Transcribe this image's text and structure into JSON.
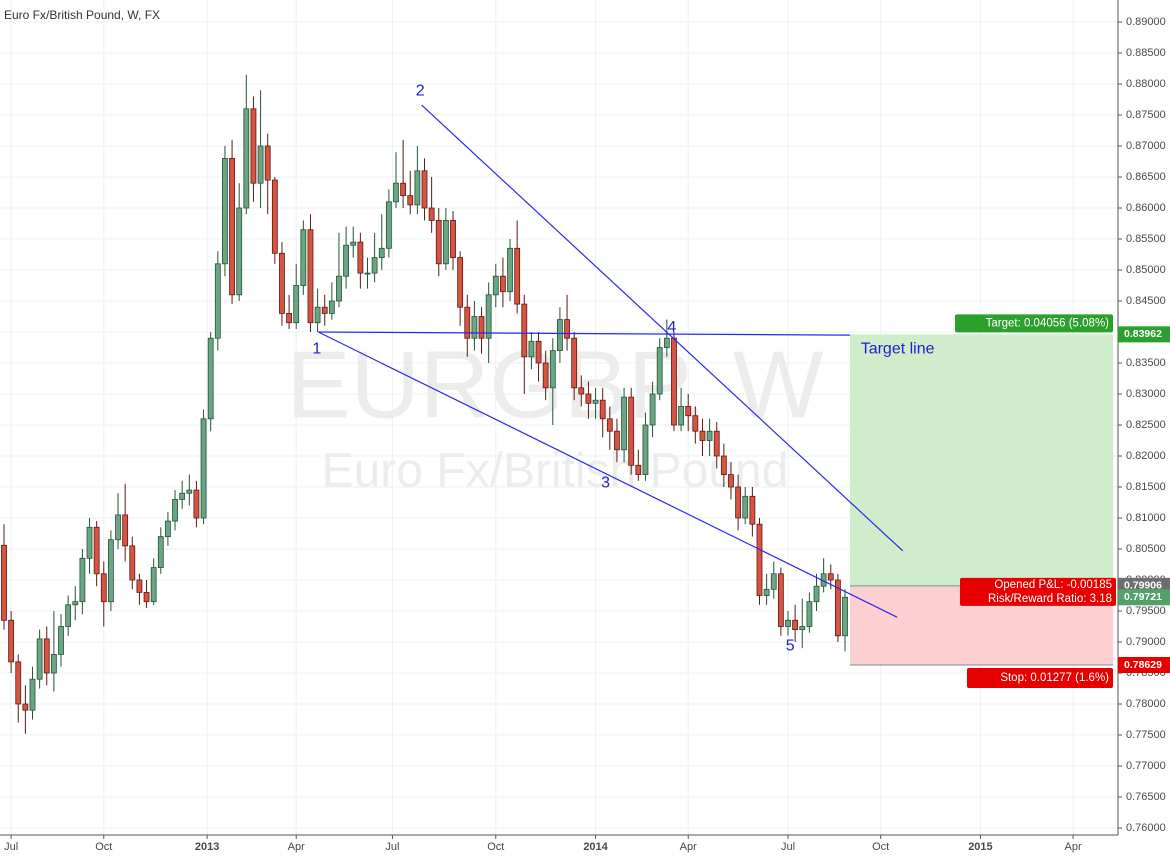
{
  "chart_data": {
    "type": "candlestick",
    "title": "Euro Fx/British Pound, W, FX",
    "watermark": "EURGBP, W",
    "watermark_subtitle": "Euro Fx/British Pound",
    "up_color": "#6ba583",
    "down_color": "#d75442",
    "grid": true,
    "xlim": [
      -0.56,
      156.3
    ],
    "xticks": [
      {
        "value": 1,
        "label": "Jul"
      },
      {
        "value": 14,
        "label": "Oct"
      },
      {
        "value": 28.5,
        "label": "2013"
      },
      {
        "value": 41,
        "label": "Apr"
      },
      {
        "value": 54.5,
        "label": "Jul"
      },
      {
        "value": 69,
        "label": "Oct"
      },
      {
        "value": 83,
        "label": "2014"
      },
      {
        "value": 96,
        "label": "Apr"
      },
      {
        "value": 110,
        "label": "Jul"
      },
      {
        "value": 123,
        "label": "Oct"
      },
      {
        "value": 137,
        "label": "2015"
      },
      {
        "value": 150,
        "label": "Apr"
      }
    ],
    "ylim": [
      0.75887,
      0.89355
    ],
    "yticks": [
      {
        "value": 0.76,
        "label": "0.76000"
      },
      {
        "value": 0.765,
        "label": "0.76500"
      },
      {
        "value": 0.77,
        "label": "0.77000"
      },
      {
        "value": 0.775,
        "label": "0.77500"
      },
      {
        "value": 0.78,
        "label": "0.78000"
      },
      {
        "value": 0.785,
        "label": "0.78500"
      },
      {
        "value": 0.79,
        "label": "0.79000"
      },
      {
        "value": 0.795,
        "label": "0.79500"
      },
      {
        "value": 0.8,
        "label": "0.80000"
      },
      {
        "value": 0.805,
        "label": "0.80500"
      },
      {
        "value": 0.81,
        "label": "0.81000"
      },
      {
        "value": 0.815,
        "label": "0.81500"
      },
      {
        "value": 0.82,
        "label": "0.82000"
      },
      {
        "value": 0.825,
        "label": "0.82500"
      },
      {
        "value": 0.83,
        "label": "0.83000"
      },
      {
        "value": 0.835,
        "label": "0.83500"
      },
      {
        "value": 0.84,
        "label": "0.84000"
      },
      {
        "value": 0.845,
        "label": "0.84500"
      },
      {
        "value": 0.85,
        "label": "0.85000"
      },
      {
        "value": 0.855,
        "label": "0.85500"
      },
      {
        "value": 0.86,
        "label": "0.86000"
      },
      {
        "value": 0.865,
        "label": "0.86500"
      },
      {
        "value": 0.87,
        "label": "0.87000"
      },
      {
        "value": 0.875,
        "label": "0.87500"
      },
      {
        "value": 0.88,
        "label": "0.88000"
      },
      {
        "value": 0.885,
        "label": "0.88500"
      },
      {
        "value": 0.89,
        "label": "0.89000"
      }
    ],
    "open": [
      0.8056,
      0.7935,
      0.7868,
      0.78,
      0.779,
      0.784,
      0.7905,
      0.785,
      0.788,
      0.7925,
      0.796,
      0.7965,
      0.8035,
      0.8085,
      0.801,
      0.7965,
      0.8065,
      0.8105,
      0.8055,
      0.8,
      0.798,
      0.7965,
      0.802,
      0.807,
      0.8095,
      0.813,
      0.814,
      0.8145,
      0.81,
      0.826,
      0.839,
      0.851,
      0.868,
      0.846,
      0.86,
      0.876,
      0.864,
      0.87,
      0.8645,
      0.8527,
      0.843,
      0.8415,
      0.8475,
      0.8565,
      0.8415,
      0.844,
      0.843,
      0.845,
      0.849,
      0.854,
      0.8545,
      0.8495,
      0.8495,
      0.852,
      0.8535,
      0.861,
      0.864,
      0.862,
      0.8605,
      0.866,
      0.86,
      0.858,
      0.851,
      0.858,
      0.852,
      0.844,
      0.839,
      0.8425,
      0.839,
      0.846,
      0.849,
      0.8465,
      0.8535,
      0.8445,
      0.836,
      0.8385,
      0.835,
      0.831,
      0.837,
      0.842,
      0.839,
      0.831,
      0.83,
      0.8285,
      0.829,
      0.826,
      0.824,
      0.821,
      0.8295,
      0.8185,
      0.817,
      0.825,
      0.83,
      0.8375,
      0.839,
      0.825,
      0.828,
      0.8265,
      0.824,
      0.8225,
      0.824,
      0.82,
      0.817,
      0.815,
      0.81,
      0.8135,
      0.809,
      0.7975,
      0.7985,
      0.801,
      0.7925,
      0.7935,
      0.792,
      0.7925,
      0.7965,
      0.799,
      0.801,
      0.8,
      0.791
    ],
    "high": [
      0.809,
      0.795,
      0.788,
      0.783,
      0.786,
      0.792,
      0.7925,
      0.795,
      0.7945,
      0.7975,
      0.799,
      0.805,
      0.81,
      0.8095,
      0.803,
      0.808,
      0.814,
      0.8155,
      0.807,
      0.801,
      0.8,
      0.8035,
      0.8085,
      0.811,
      0.8145,
      0.816,
      0.817,
      0.816,
      0.8275,
      0.84,
      0.853,
      0.87,
      0.871,
      0.864,
      0.8815,
      0.878,
      0.879,
      0.872,
      0.865,
      0.8545,
      0.846,
      0.851,
      0.858,
      0.859,
      0.847,
      0.846,
      0.848,
      0.856,
      0.857,
      0.857,
      0.856,
      0.852,
      0.856,
      0.859,
      0.863,
      0.869,
      0.871,
      0.866,
      0.87,
      0.868,
      0.865,
      0.86,
      0.86,
      0.8595,
      0.853,
      0.846,
      0.845,
      0.844,
      0.848,
      0.851,
      0.852,
      0.855,
      0.858,
      0.846,
      0.84,
      0.84,
      0.837,
      0.839,
      0.844,
      0.846,
      0.84,
      0.833,
      0.832,
      0.831,
      0.831,
      0.828,
      0.826,
      0.831,
      0.831,
      0.821,
      0.827,
      0.832,
      0.839,
      0.842,
      0.84,
      0.831,
      0.83,
      0.828,
      0.826,
      0.826,
      0.8255,
      0.822,
      0.819,
      0.817,
      0.815,
      0.815,
      0.81,
      0.801,
      0.803,
      0.802,
      0.795,
      0.796,
      0.797,
      0.798,
      0.801,
      0.8035,
      0.8025,
      0.801,
      0.7985
    ],
    "low": [
      0.792,
      0.785,
      0.777,
      0.7752,
      0.7775,
      0.7825,
      0.783,
      0.782,
      0.786,
      0.791,
      0.7935,
      0.7945,
      0.801,
      0.799,
      0.7925,
      0.795,
      0.805,
      0.803,
      0.7985,
      0.796,
      0.7955,
      0.796,
      0.801,
      0.8055,
      0.808,
      0.8115,
      0.812,
      0.8085,
      0.809,
      0.824,
      0.837,
      0.849,
      0.8445,
      0.845,
      0.859,
      0.861,
      0.86,
      0.859,
      0.851,
      0.841,
      0.8405,
      0.8405,
      0.846,
      0.84,
      0.84,
      0.841,
      0.842,
      0.844,
      0.847,
      0.852,
      0.847,
      0.847,
      0.848,
      0.85,
      0.852,
      0.86,
      0.86,
      0.859,
      0.859,
      0.858,
      0.856,
      0.849,
      0.85,
      0.85,
      0.841,
      0.836,
      0.837,
      0.8365,
      0.835,
      0.844,
      0.844,
      0.845,
      0.843,
      0.83,
      0.834,
      0.832,
      0.829,
      0.825,
      0.835,
      0.837,
      0.829,
      0.828,
      0.826,
      0.826,
      0.823,
      0.821,
      0.819,
      0.819,
      0.817,
      0.816,
      0.816,
      0.823,
      0.829,
      0.836,
      0.824,
      0.824,
      0.824,
      0.822,
      0.82,
      0.82,
      0.818,
      0.815,
      0.813,
      0.808,
      0.809,
      0.807,
      0.796,
      0.796,
      0.797,
      0.791,
      0.791,
      0.79,
      0.789,
      0.7915,
      0.795,
      0.798,
      0.7985,
      0.79,
      0.7885
    ],
    "close": [
      0.7935,
      0.7868,
      0.78,
      0.779,
      0.784,
      0.7905,
      0.785,
      0.788,
      0.7925,
      0.796,
      0.7965,
      0.8035,
      0.8085,
      0.801,
      0.7965,
      0.8065,
      0.8105,
      0.8055,
      0.8,
      0.798,
      0.7965,
      0.802,
      0.807,
      0.8095,
      0.813,
      0.814,
      0.8145,
      0.81,
      0.826,
      0.839,
      0.851,
      0.868,
      0.846,
      0.86,
      0.876,
      0.864,
      0.87,
      0.8645,
      0.8527,
      0.843,
      0.8415,
      0.8475,
      0.8565,
      0.8415,
      0.844,
      0.843,
      0.845,
      0.849,
      0.854,
      0.8545,
      0.8495,
      0.8495,
      0.852,
      0.8535,
      0.861,
      0.864,
      0.862,
      0.8605,
      0.866,
      0.86,
      0.858,
      0.851,
      0.858,
      0.852,
      0.844,
      0.839,
      0.8425,
      0.839,
      0.846,
      0.849,
      0.8465,
      0.8535,
      0.8445,
      0.836,
      0.8385,
      0.835,
      0.831,
      0.837,
      0.842,
      0.839,
      0.831,
      0.83,
      0.8285,
      0.829,
      0.826,
      0.824,
      0.821,
      0.8295,
      0.8185,
      0.817,
      0.825,
      0.83,
      0.8375,
      0.839,
      0.825,
      0.828,
      0.8265,
      0.824,
      0.8225,
      0.824,
      0.82,
      0.817,
      0.815,
      0.81,
      0.8135,
      0.809,
      0.7975,
      0.7985,
      0.801,
      0.7925,
      0.7935,
      0.792,
      0.7925,
      0.7965,
      0.799,
      0.801,
      0.8,
      0.791,
      0.79721
    ],
    "last_price": 0.79721,
    "lines": [
      {
        "x1": 44.1,
        "y1": 0.84,
        "x2": 118.7,
        "y2": 0.8395
      },
      {
        "x1": 58.6,
        "y1": 0.8766,
        "x2": 126.1,
        "y2": 0.8047
      },
      {
        "x1": 44.1,
        "y1": 0.84,
        "x2": 125.3,
        "y2": 0.794
      }
    ],
    "annotations": [
      {
        "text": "1",
        "x": 43.9,
        "y": 0.8372
      },
      {
        "text": "2",
        "x": 58.4,
        "y": 0.8788
      },
      {
        "text": "3",
        "x": 84.4,
        "y": 0.8156
      },
      {
        "text": "4",
        "x": 93.7,
        "y": 0.8407
      },
      {
        "text": "5",
        "x": 110.3,
        "y": 0.7893
      },
      {
        "text": "Target line",
        "x": 120.2,
        "y": 0.8372
      }
    ],
    "position": {
      "start": 118.7,
      "end": 155.6,
      "entry": 0.79906,
      "target": 0.83962,
      "stop": 0.78629,
      "target_label": "Target: 0.04056 (5.08%)",
      "pnl_label": "Opened P&L: -0.00185",
      "rr_label": "Risk/Reward Ratio: 3.18",
      "stop_label": "Stop: 0.01277 (1.6%)"
    }
  }
}
